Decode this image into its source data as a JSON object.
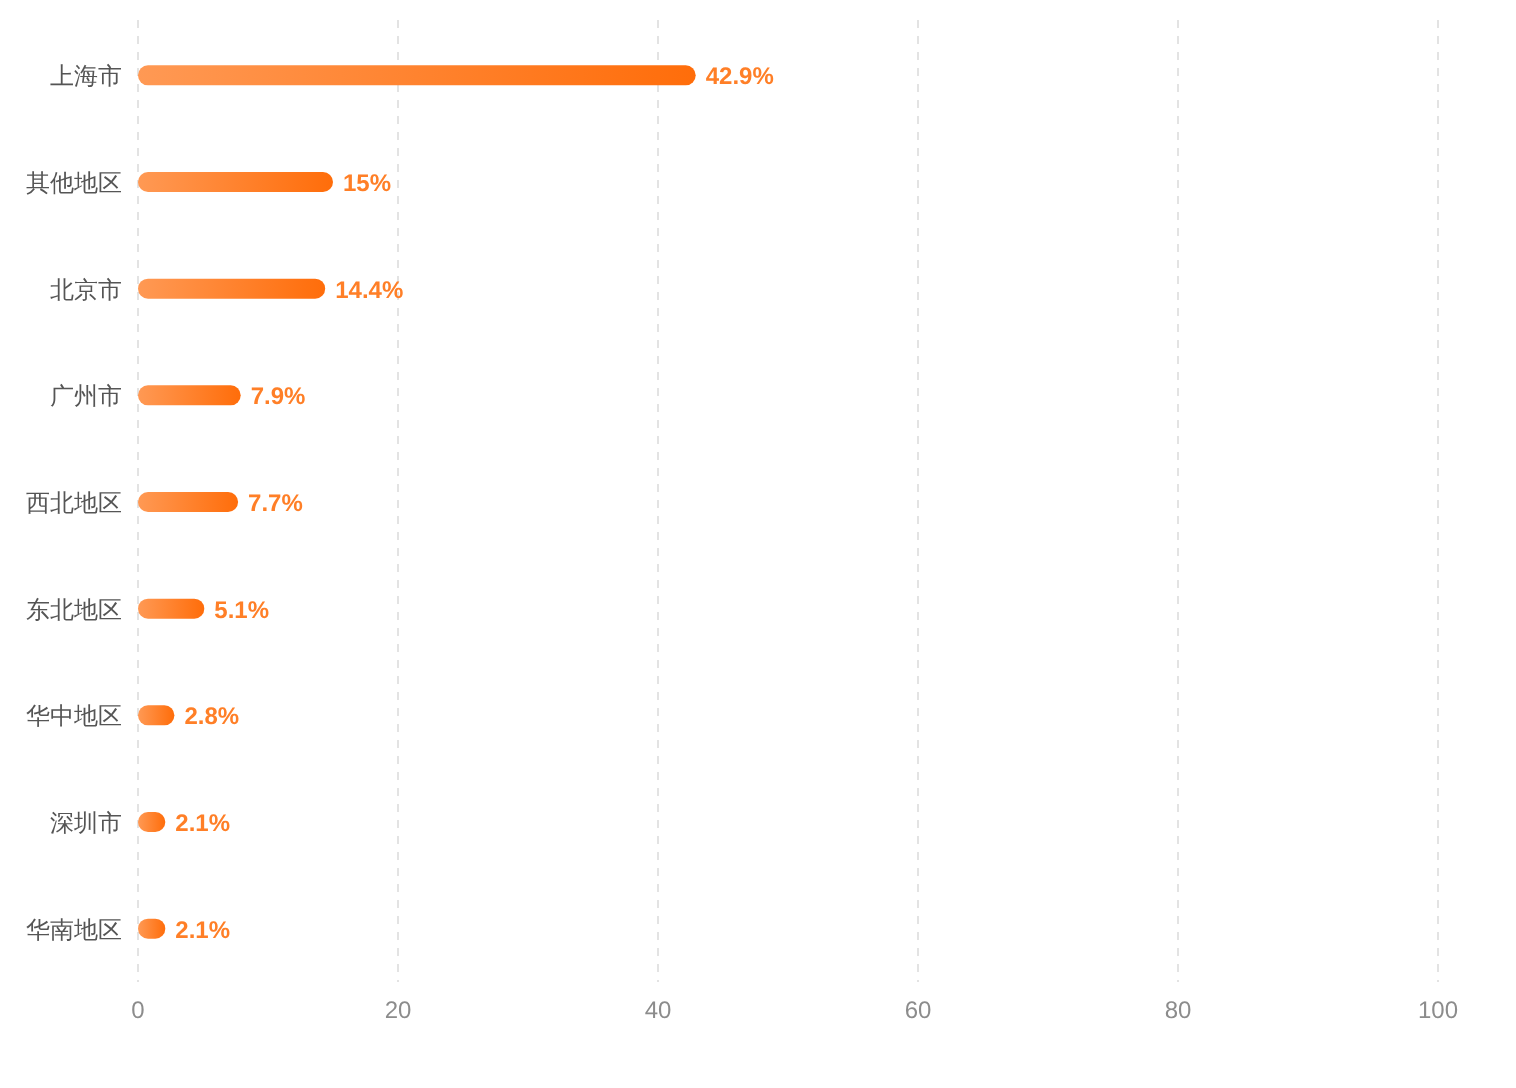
{
  "chart_data": {
    "type": "bar",
    "orientation": "horizontal",
    "categories": [
      "上海市",
      "其他地区",
      "北京市",
      "广州市",
      "西北地区",
      "东北地区",
      "华中地区",
      "深圳市",
      "华南地区"
    ],
    "values": [
      42.9,
      15,
      14.4,
      7.9,
      7.7,
      5.1,
      2.8,
      2.1,
      2.1
    ],
    "value_labels": [
      "42.9%",
      "15%",
      "14.4%",
      "7.9%",
      "7.7%",
      "5.1%",
      "2.8%",
      "2.1%",
      "2.1%"
    ],
    "color": "#ff6d0a",
    "xlim": [
      0,
      100
    ],
    "xticks": [
      0,
      20,
      40,
      60,
      80,
      100
    ],
    "grid": "x"
  }
}
